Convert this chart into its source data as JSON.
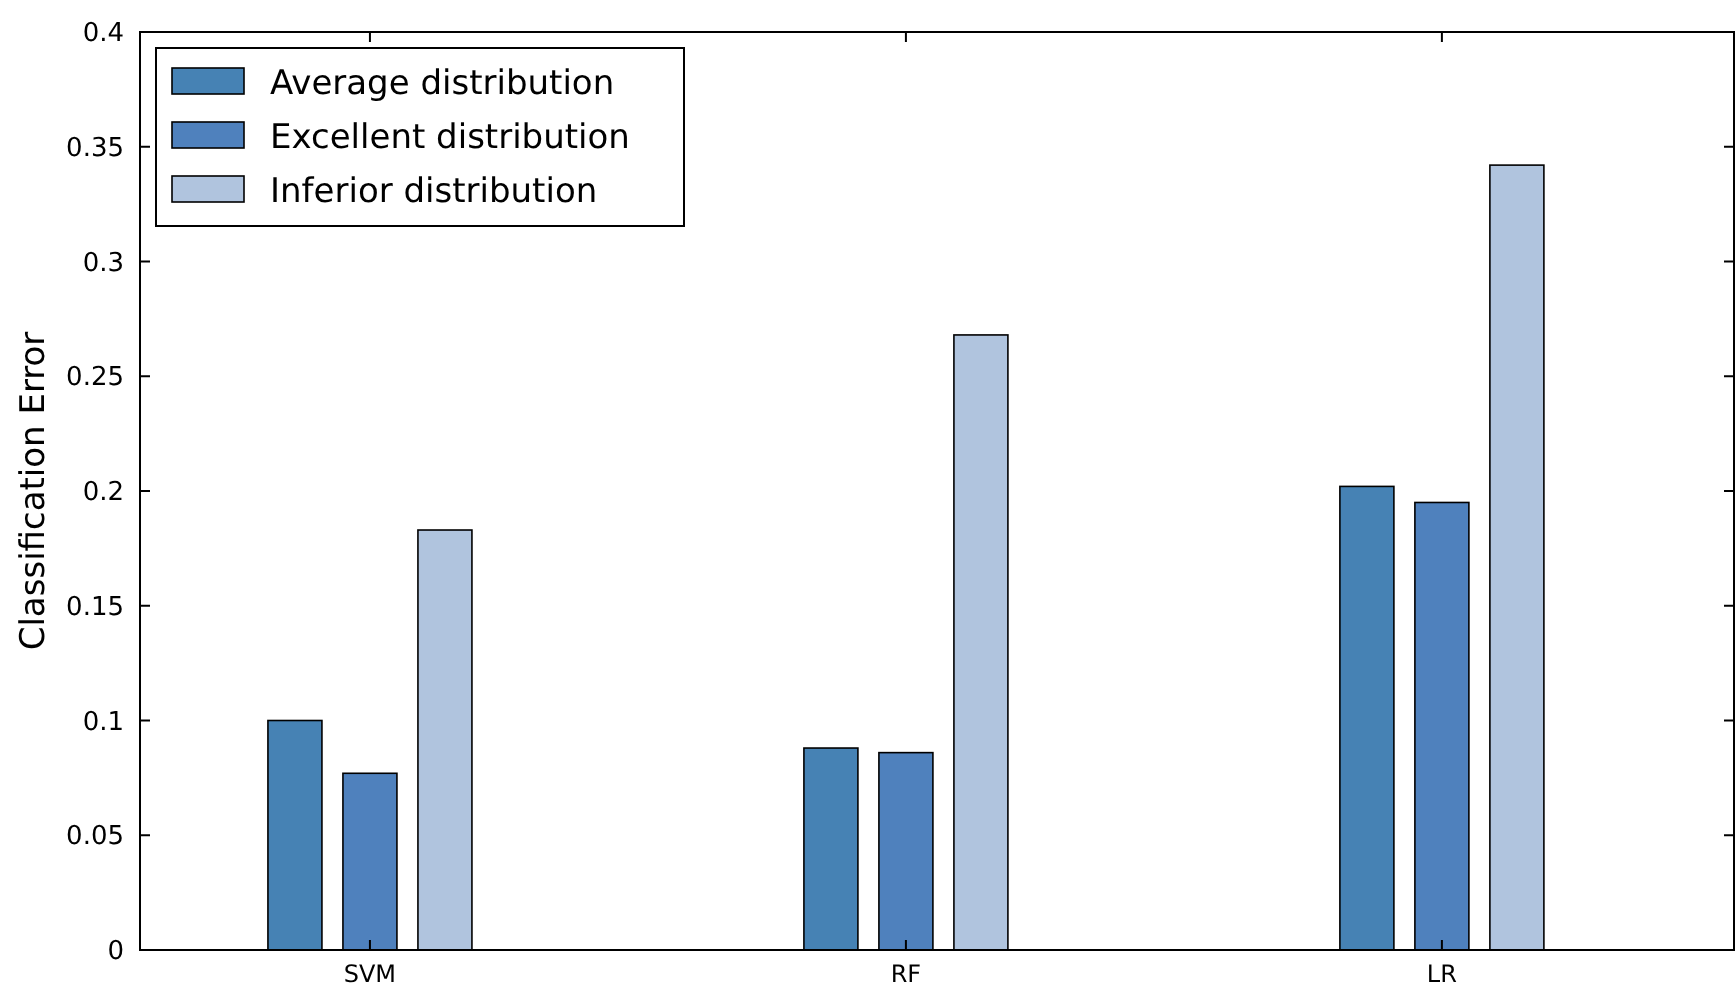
{
  "chart_data": {
    "type": "bar",
    "ylabel": "Classification Error",
    "categories": [
      "SVM",
      "RF",
      "LR"
    ],
    "series": [
      {
        "name": "Average distribution",
        "color": "#4682b4",
        "values": [
          0.1,
          0.088,
          0.202
        ]
      },
      {
        "name": "Excellent distribution",
        "color": "#4f81bd",
        "values": [
          0.077,
          0.086,
          0.195
        ]
      },
      {
        "name": "Inferior distribution",
        "color": "#b0c4de",
        "values": [
          0.183,
          0.268,
          0.342
        ]
      }
    ],
    "ylim": [
      0,
      0.4
    ],
    "yticks": [
      0,
      0.05,
      0.1,
      0.15,
      0.2,
      0.25,
      0.3,
      0.35,
      0.4
    ],
    "legend": "top left",
    "grid": false
  }
}
